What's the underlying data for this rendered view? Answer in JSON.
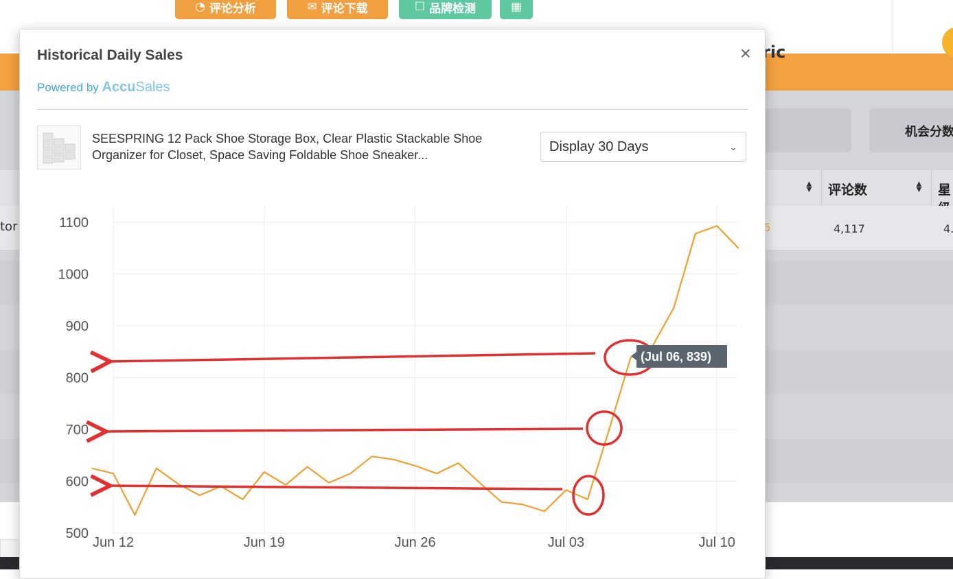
{
  "background": {
    "toolbar_buttons": [
      {
        "label": "评论分析",
        "icon": "pie-chart-icon"
      },
      {
        "label": "评论下载",
        "icon": "comment-icon"
      },
      {
        "label": "品牌检测",
        "icon": "clipboard-icon"
      },
      {
        "label": "",
        "icon": "grid-icon"
      }
    ],
    "filter_label": "机会分数",
    "partial_heading": "ric",
    "table": {
      "headers": [
        "评论数",
        "星级"
      ],
      "row_partial_left": "tor",
      "review_count": "4,117",
      "rating_partial": "4.",
      "orange_value_partial": "6"
    }
  },
  "modal": {
    "title": "Historical Daily Sales",
    "powered_by": "Powered by",
    "brand_prefix": "Accu",
    "brand_suffix": "Sales",
    "close_label": "×",
    "product": {
      "title": "SEESPRING 12 Pack Shoe Storage Box, Clear Plastic Stackable Shoe Organizer for Closet, Space Saving Foldable Shoe Sneaker..."
    },
    "display_select": {
      "selected": "Display 30 Days"
    }
  },
  "chart_data": {
    "type": "line",
    "title": "",
    "xlabel": "",
    "ylabel": "",
    "ylim": [
      500,
      1100
    ],
    "yticks": [
      500,
      600,
      700,
      800,
      900,
      1000,
      1100
    ],
    "xtick_labels": [
      "Jun 12",
      "Jun 19",
      "Jun 26",
      "Jul 03",
      "Jul 10"
    ],
    "xtick_days": [
      0,
      7,
      14,
      21,
      28
    ],
    "x_start_offset": -1,
    "x": [
      -1,
      0,
      1,
      2,
      3,
      4,
      5,
      6,
      7,
      8,
      9,
      10,
      11,
      12,
      13,
      14,
      15,
      16,
      17,
      18,
      19,
      20,
      21,
      22,
      23,
      24,
      25,
      26,
      27,
      28,
      29
    ],
    "values": [
      625,
      615,
      535,
      625,
      595,
      573,
      590,
      565,
      618,
      593,
      628,
      597,
      615,
      648,
      642,
      630,
      615,
      635,
      597,
      560,
      555,
      542,
      583,
      565,
      700,
      839,
      860,
      935,
      1078,
      1093,
      1050
    ],
    "series": [
      {
        "values": [
          625,
          615,
          535,
          625,
          595,
          573,
          590,
          565,
          618,
          593,
          628,
          597,
          615,
          648,
          642,
          630,
          615,
          635,
          597,
          560,
          555,
          542,
          583,
          565,
          700,
          839,
          860,
          935,
          1078,
          1093,
          1050
        ],
        "color": "#f0a030"
      }
    ],
    "tooltip": "(Jul 06, 839)",
    "grid": true
  },
  "colors": {
    "line": "#f0a030",
    "annotation": "#e03030",
    "tooltip_bg": "#5a6570"
  }
}
